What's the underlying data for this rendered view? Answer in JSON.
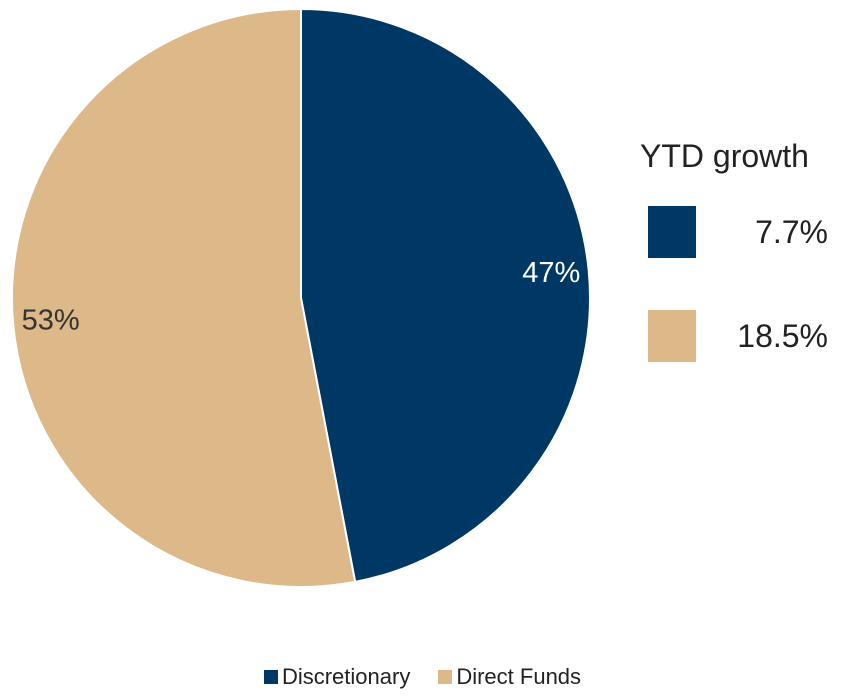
{
  "chart_data": {
    "type": "pie",
    "slices": [
      {
        "name": "Discretionary",
        "value": 47,
        "label": "47%",
        "color": "#003865"
      },
      {
        "name": "Direct Funds",
        "value": 53,
        "label": "53%",
        "color": "#DDB888"
      }
    ],
    "legend_position": "bottom",
    "start": "top",
    "direction": "clockwise"
  },
  "growth_panel": {
    "title": "YTD growth",
    "rows": [
      {
        "value": "7.7%",
        "color": "#003865"
      },
      {
        "value": "18.5%",
        "color": "#DDB888"
      }
    ]
  },
  "legend": {
    "items": [
      {
        "label": "Discretionary",
        "color": "#003865"
      },
      {
        "label": "Direct Funds",
        "color": "#DDB888"
      }
    ]
  }
}
